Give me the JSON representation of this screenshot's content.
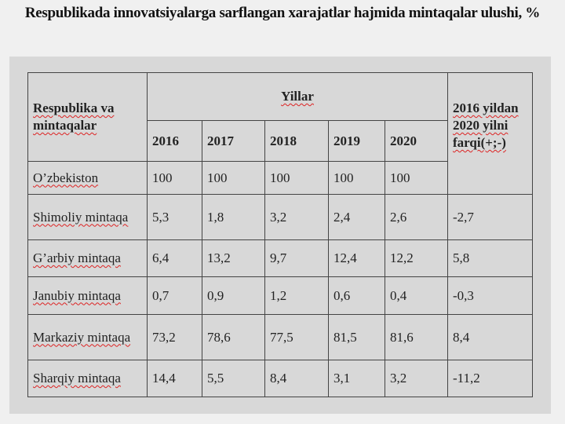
{
  "title": "Respublikada innovatsiyalarga sarflangan xarajatlar hajmida mintaqalar ulushi, %",
  "table": {
    "header": {
      "region": "Respublika va mintaqalar",
      "group": "Yillar",
      "years": [
        "2016",
        "2017",
        "2018",
        "2019",
        "2020"
      ],
      "diff": "2016 yildan 2020 yilni farqi(+;-)"
    },
    "rows": [
      {
        "name": "O’zbekiston",
        "cells": [
          "100",
          "100",
          "100",
          "100",
          "100"
        ]
      },
      {
        "name": "Shimoliy mintaqa",
        "cells": [
          "5,3",
          "1,8",
          "3,2",
          "2,4",
          "2,6",
          "-2,7"
        ]
      },
      {
        "name": "G’arbiy mintaqa",
        "cells": [
          "6,4",
          "13,2",
          "9,7",
          "12,4",
          "12,2",
          "5,8"
        ]
      },
      {
        "name": "Janubiy mintaqa",
        "cells": [
          "0,7",
          "0,9",
          "1,2",
          "0,6",
          "0,4",
          "-0,3"
        ]
      },
      {
        "name": "Markaziy mintaqa",
        "cells": [
          "73,2",
          "78,6",
          "77,5",
          "81,5",
          "81,6",
          "8,4"
        ]
      },
      {
        "name": "Sharqiy mintaqa",
        "cells": [
          "14,4",
          "5,5",
          "8,4",
          "3,1",
          "3,2",
          "-11,2"
        ]
      }
    ]
  }
}
